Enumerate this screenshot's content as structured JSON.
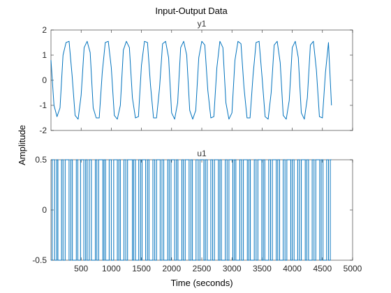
{
  "figure": {
    "title": "Input-Output Data",
    "xlabel": "Time (seconds)",
    "ylabel": "Amplitude"
  },
  "chart_data": [
    {
      "type": "line",
      "name": "y1",
      "title": "y1",
      "xlim": [
        0,
        5000
      ],
      "ylim": [
        -2,
        2
      ],
      "yticks": [
        -2,
        -1,
        0,
        1,
        2
      ],
      "xticks": [
        500,
        1000,
        1500,
        2000,
        2500,
        3000,
        3500,
        4000,
        4500,
        5000
      ],
      "show_x_tick_labels": false,
      "color": "#0072BD",
      "series": [
        {
          "name": "y1",
          "x": [
            0,
            50,
            100,
            150,
            200,
            250,
            300,
            350,
            400,
            450,
            500,
            550,
            600,
            650,
            700,
            750,
            800,
            850,
            900,
            950,
            1000,
            1050,
            1100,
            1150,
            1200,
            1250,
            1300,
            1350,
            1400,
            1450,
            1500,
            1550,
            1600,
            1650,
            1700,
            1750,
            1800,
            1850,
            1900,
            1950,
            2000,
            2050,
            2100,
            2150,
            2200,
            2250,
            2300,
            2350,
            2400,
            2450,
            2500,
            2550,
            2600,
            2650,
            2700,
            2750,
            2800,
            2850,
            2900,
            2950,
            3000,
            3050,
            3100,
            3150,
            3200,
            3250,
            3300,
            3350,
            3400,
            3450,
            3500,
            3550,
            3600,
            3650,
            3700,
            3750,
            3800,
            3850,
            3900,
            3950,
            4000,
            4050,
            4100,
            4150,
            4200,
            4250,
            4300,
            4350,
            4400,
            4450,
            4500,
            4550,
            4600,
            4650
          ],
          "y": [
            0.8,
            -1.0,
            -1.45,
            -1.1,
            1.0,
            1.5,
            1.55,
            0.2,
            -1.4,
            -1.55,
            -0.6,
            1.3,
            1.55,
            1.1,
            -1.1,
            -1.5,
            -1.5,
            0.3,
            1.5,
            1.55,
            0.5,
            -1.4,
            -1.55,
            -1.0,
            1.2,
            1.55,
            1.3,
            -0.7,
            -1.5,
            -1.45,
            0.6,
            1.55,
            1.5,
            -0.2,
            -1.5,
            -1.5,
            -0.3,
            1.45,
            1.55,
            0.9,
            -1.3,
            -1.55,
            -0.9,
            1.3,
            1.55,
            1.0,
            -1.2,
            -1.55,
            -1.2,
            0.9,
            1.55,
            1.4,
            -0.4,
            -1.5,
            -1.45,
            0.5,
            1.55,
            1.3,
            -0.9,
            -1.55,
            -1.3,
            0.8,
            1.55,
            1.45,
            -0.3,
            -1.5,
            -1.5,
            0.2,
            1.5,
            1.55,
            0.1,
            -1.45,
            -1.55,
            -0.5,
            1.4,
            1.55,
            0.7,
            -1.4,
            -1.55,
            -0.8,
            1.3,
            1.55,
            0.9,
            -1.3,
            -1.55,
            -0.7,
            1.4,
            1.55,
            0.4,
            -1.45,
            -1.5,
            0.3,
            1.5,
            -1.0
          ]
        }
      ]
    },
    {
      "type": "line",
      "step": true,
      "name": "u1",
      "title": "u1",
      "xlim": [
        0,
        5000
      ],
      "ylim": [
        -0.5,
        0.5
      ],
      "yticks": [
        -0.5,
        0,
        0.5
      ],
      "xticks": [
        500,
        1000,
        1500,
        2000,
        2500,
        3000,
        3500,
        4000,
        4500,
        5000
      ],
      "show_x_tick_labels": true,
      "color": "#0072BD",
      "series": [
        {
          "name": "u1",
          "switch_times": [
            20,
            60,
            95,
            115,
            175,
            200,
            235,
            300,
            330,
            355,
            420,
            445,
            490,
            545,
            575,
            600,
            635,
            670,
            735,
            760,
            790,
            860,
            880,
            905,
            965,
            1000,
            1040,
            1100,
            1125,
            1150,
            1210,
            1240,
            1270,
            1350,
            1370,
            1400,
            1455,
            1485,
            1510,
            1570,
            1600,
            1625,
            1690,
            1720,
            1750,
            1810,
            1840,
            1870,
            1935,
            1960,
            1990,
            2050,
            2080,
            2105,
            2170,
            2195,
            2225,
            2290,
            2320,
            2345,
            2405,
            2440,
            2470,
            2535,
            2560,
            2590,
            2650,
            2680,
            2710,
            2775,
            2800,
            2825,
            2890,
            2920,
            2950,
            3015,
            3040,
            3065,
            3130,
            3160,
            3190,
            3255,
            3280,
            3305,
            3370,
            3400,
            3430,
            3495,
            3520,
            3545,
            3610,
            3640,
            3670,
            3735,
            3760,
            3790,
            3850,
            3880,
            3910,
            3975,
            4000,
            4030,
            4090,
            4120,
            4150,
            4215,
            4240,
            4270,
            4330,
            4360,
            4390,
            4455,
            4480,
            4510,
            4570,
            4600,
            4630
          ],
          "start_level": -0.5,
          "end_time": 4650
        }
      ]
    }
  ]
}
